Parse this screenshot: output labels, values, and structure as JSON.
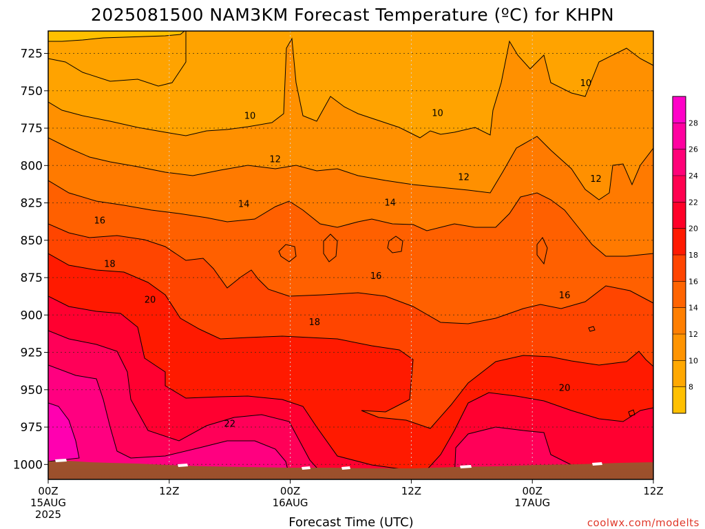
{
  "chart_data": {
    "type": "heatmap",
    "title": "2025081500 NAM3KM Forecast Temperature (ºC) for KHPN",
    "xlabel": "Forecast Time (UTC)",
    "credit": "coolwx.com/modelts",
    "y_ticks": [
      "725",
      "750",
      "775",
      "800",
      "825",
      "850",
      "875",
      "900",
      "925",
      "950",
      "975",
      "1000"
    ],
    "y_values": [
      725,
      750,
      775,
      800,
      825,
      850,
      875,
      900,
      925,
      950,
      975,
      1000
    ],
    "y_range": [
      1010,
      710
    ],
    "x_range": [
      0,
      60
    ],
    "x_ticks": [
      {
        "hour": 0,
        "label": "00Z",
        "sub": "15AUG",
        "sub2": "2025"
      },
      {
        "hour": 12,
        "label": "12Z",
        "sub": "",
        "sub2": ""
      },
      {
        "hour": 24,
        "label": "00Z",
        "sub": "16AUG",
        "sub2": ""
      },
      {
        "hour": 36,
        "label": "12Z",
        "sub": "",
        "sub2": ""
      },
      {
        "hour": 48,
        "label": "00Z",
        "sub": "17AUG",
        "sub2": ""
      },
      {
        "hour": 60,
        "label": "12Z",
        "sub": "",
        "sub2": ""
      }
    ],
    "colorbar": {
      "levels": [
        8,
        10,
        12,
        14,
        16,
        18,
        20,
        22,
        24,
        26,
        28
      ],
      "tick_labels": [
        "8",
        "10",
        "12",
        "14",
        "16",
        "18",
        "20",
        "22",
        "24",
        "26",
        "28"
      ],
      "colors": [
        "#ffc000",
        "#ffa800",
        "#ff9400",
        "#ff7f00",
        "#ff6400",
        "#ff4500",
        "#ff1a00",
        "#ff0028",
        "#ff0050",
        "#ff0078",
        "#ff00a0",
        "#ff00c8"
      ]
    },
    "contour_labels": [
      {
        "value": "10",
        "hour": 20,
        "p": 767
      },
      {
        "value": "10",
        "hour": 38.6,
        "p": 765
      },
      {
        "value": "10",
        "hour": 53.3,
        "p": 745
      },
      {
        "value": "12",
        "hour": 22.5,
        "p": 796
      },
      {
        "value": "12",
        "hour": 41.2,
        "p": 808
      },
      {
        "value": "12",
        "hour": 54.3,
        "p": 809
      },
      {
        "value": "14",
        "hour": 19.4,
        "p": 826
      },
      {
        "value": "14",
        "hour": 33.9,
        "p": 825
      },
      {
        "value": "16",
        "hour": 5.1,
        "p": 837
      },
      {
        "value": "16",
        "hour": 32.5,
        "p": 874
      },
      {
        "value": "16",
        "hour": 51.2,
        "p": 887
      },
      {
        "value": "18",
        "hour": 6.1,
        "p": 866
      },
      {
        "value": "18",
        "hour": 26.4,
        "p": 905
      },
      {
        "value": "20",
        "hour": 10.1,
        "p": 890
      },
      {
        "value": "20",
        "hour": 51.2,
        "p": 949
      },
      {
        "value": "22",
        "hour": 18,
        "p": 973
      }
    ]
  }
}
